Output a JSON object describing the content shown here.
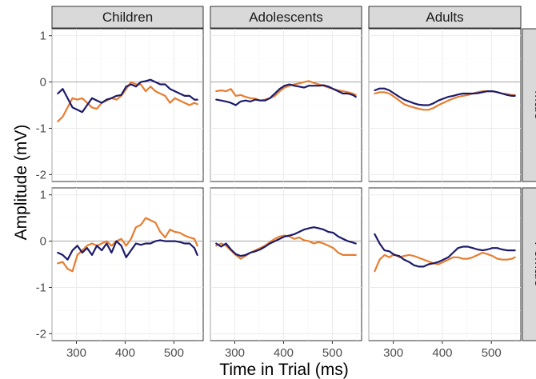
{
  "chart_data": {
    "type": "line",
    "xlabel": "Time in Trial (ms)",
    "ylabel": "Amplitude (mV)",
    "xlim": [
      250,
      560
    ],
    "ylim": [
      -2.15,
      1.15
    ],
    "xticks": [
      300,
      400,
      500
    ],
    "xtick_labels": [
      "300",
      "400",
      "500"
    ],
    "yticks": [
      1,
      0,
      -1,
      -2
    ],
    "ytick_labels": [
      "1",
      "0",
      "-1",
      "-2"
    ],
    "facet_cols": [
      "Children",
      "Adolescents",
      "Adults"
    ],
    "facet_rows": [
      "Male",
      "Female"
    ],
    "grid": true,
    "zero_line": true,
    "series_colors": [
      "#e87d2f",
      "#1b1b6b"
    ],
    "panels": [
      {
        "row": "Male",
        "col": "Children",
        "series": [
          {
            "color": "#e87d2f",
            "x": [
              262,
              272,
              282,
              292,
              302,
              312,
              322,
              332,
              342,
              352,
              362,
              372,
              382,
              392,
              402,
              412,
              422,
              432,
              442,
              452,
              462,
              472,
              482,
              492,
              502,
              512,
              522,
              532,
              542,
              548
            ],
            "y": [
              -0.85,
              -0.75,
              -0.55,
              -0.35,
              -0.38,
              -0.35,
              -0.45,
              -0.55,
              -0.58,
              -0.45,
              -0.4,
              -0.35,
              -0.38,
              -0.3,
              -0.15,
              0.0,
              -0.05,
              -0.05,
              -0.2,
              -0.1,
              -0.2,
              -0.25,
              -0.3,
              -0.45,
              -0.35,
              -0.4,
              -0.45,
              -0.5,
              -0.45,
              -0.48
            ]
          },
          {
            "color": "#1b1b6b",
            "x": [
              262,
              272,
              282,
              292,
              302,
              312,
              322,
              332,
              342,
              352,
              362,
              372,
              382,
              392,
              402,
              412,
              422,
              432,
              442,
              452,
              462,
              472,
              482,
              492,
              502,
              512,
              522,
              532,
              542,
              548
            ],
            "y": [
              -0.25,
              -0.15,
              -0.35,
              -0.55,
              -0.6,
              -0.65,
              -0.5,
              -0.35,
              -0.4,
              -0.45,
              -0.38,
              -0.35,
              -0.3,
              -0.28,
              -0.1,
              -0.05,
              -0.1,
              0.0,
              0.02,
              0.05,
              0.0,
              -0.05,
              -0.05,
              -0.15,
              -0.2,
              -0.25,
              -0.3,
              -0.3,
              -0.38,
              -0.38
            ]
          }
        ]
      },
      {
        "row": "Male",
        "col": "Adolescents",
        "series": [
          {
            "color": "#e87d2f",
            "x": [
              262,
              272,
              282,
              292,
              302,
              312,
              322,
              332,
              342,
              352,
              362,
              372,
              382,
              392,
              402,
              412,
              422,
              432,
              442,
              452,
              462,
              472,
              482,
              492,
              502,
              512,
              522,
              532,
              542,
              548
            ],
            "y": [
              -0.2,
              -0.18,
              -0.2,
              -0.15,
              -0.3,
              -0.28,
              -0.32,
              -0.35,
              -0.36,
              -0.4,
              -0.38,
              -0.35,
              -0.3,
              -0.2,
              -0.12,
              -0.08,
              -0.05,
              -0.03,
              0.0,
              0.02,
              -0.02,
              -0.05,
              -0.08,
              -0.12,
              -0.15,
              -0.18,
              -0.2,
              -0.22,
              -0.25,
              -0.28
            ]
          },
          {
            "color": "#1b1b6b",
            "x": [
              262,
              272,
              282,
              292,
              302,
              312,
              322,
              332,
              342,
              352,
              362,
              372,
              382,
              392,
              402,
              412,
              422,
              432,
              442,
              452,
              462,
              472,
              482,
              492,
              502,
              512,
              522,
              532,
              542,
              548
            ],
            "y": [
              -0.38,
              -0.4,
              -0.42,
              -0.45,
              -0.5,
              -0.42,
              -0.4,
              -0.42,
              -0.38,
              -0.4,
              -0.4,
              -0.35,
              -0.25,
              -0.15,
              -0.08,
              -0.05,
              -0.08,
              -0.1,
              -0.12,
              -0.08,
              -0.08,
              -0.08,
              -0.07,
              -0.1,
              -0.15,
              -0.2,
              -0.25,
              -0.25,
              -0.28,
              -0.32
            ]
          }
        ]
      },
      {
        "row": "Male",
        "col": "Adults",
        "series": [
          {
            "color": "#e87d2f",
            "x": [
              262,
              272,
              282,
              292,
              302,
              312,
              322,
              332,
              342,
              352,
              362,
              372,
              382,
              392,
              402,
              412,
              422,
              432,
              442,
              452,
              462,
              472,
              482,
              492,
              502,
              512,
              522,
              532,
              542,
              548
            ],
            "y": [
              -0.25,
              -0.22,
              -0.22,
              -0.25,
              -0.32,
              -0.4,
              -0.48,
              -0.52,
              -0.55,
              -0.58,
              -0.6,
              -0.6,
              -0.56,
              -0.5,
              -0.45,
              -0.4,
              -0.36,
              -0.32,
              -0.3,
              -0.28,
              -0.25,
              -0.22,
              -0.2,
              -0.2,
              -0.2,
              -0.22,
              -0.25,
              -0.26,
              -0.28,
              -0.28
            ]
          },
          {
            "color": "#1b1b6b",
            "x": [
              262,
              272,
              282,
              292,
              302,
              312,
              322,
              332,
              342,
              352,
              362,
              372,
              382,
              392,
              402,
              412,
              422,
              432,
              442,
              452,
              462,
              472,
              482,
              492,
              502,
              512,
              522,
              532,
              542,
              548
            ],
            "y": [
              -0.18,
              -0.14,
              -0.14,
              -0.18,
              -0.25,
              -0.32,
              -0.38,
              -0.42,
              -0.46,
              -0.49,
              -0.5,
              -0.5,
              -0.46,
              -0.4,
              -0.36,
              -0.32,
              -0.3,
              -0.27,
              -0.25,
              -0.25,
              -0.25,
              -0.24,
              -0.22,
              -0.2,
              -0.2,
              -0.22,
              -0.25,
              -0.28,
              -0.3,
              -0.3
            ]
          }
        ]
      },
      {
        "row": "Female",
        "col": "Children",
        "series": [
          {
            "color": "#e87d2f",
            "x": [
              262,
              272,
              282,
              292,
              302,
              312,
              322,
              332,
              342,
              352,
              362,
              372,
              382,
              392,
              402,
              412,
              422,
              432,
              442,
              452,
              462,
              472,
              482,
              492,
              502,
              512,
              522,
              532,
              542,
              548
            ],
            "y": [
              -0.48,
              -0.45,
              -0.6,
              -0.65,
              -0.3,
              -0.2,
              -0.1,
              -0.05,
              -0.1,
              -0.05,
              0.0,
              -0.1,
              0.0,
              0.05,
              -0.1,
              0.05,
              0.3,
              0.35,
              0.5,
              0.45,
              0.4,
              0.2,
              0.08,
              0.25,
              0.2,
              0.18,
              0.12,
              0.08,
              0.05,
              -0.1
            ]
          },
          {
            "color": "#1b1b6b",
            "x": [
              262,
              272,
              282,
              292,
              302,
              312,
              322,
              332,
              342,
              352,
              362,
              372,
              382,
              392,
              402,
              412,
              422,
              432,
              442,
              452,
              462,
              472,
              482,
              492,
              502,
              512,
              522,
              532,
              542,
              548
            ],
            "y": [
              -0.25,
              -0.3,
              -0.4,
              -0.2,
              -0.1,
              -0.25,
              -0.15,
              -0.3,
              -0.1,
              -0.2,
              -0.05,
              -0.25,
              0.0,
              -0.1,
              -0.35,
              -0.2,
              -0.05,
              -0.08,
              -0.05,
              -0.05,
              0.0,
              0.02,
              0.0,
              0.0,
              0.0,
              -0.02,
              -0.05,
              -0.05,
              -0.15,
              -0.3
            ]
          }
        ]
      },
      {
        "row": "Female",
        "col": "Adolescents",
        "series": [
          {
            "color": "#e87d2f",
            "x": [
              262,
              272,
              282,
              292,
              302,
              312,
              322,
              332,
              342,
              352,
              362,
              372,
              382,
              392,
              402,
              412,
              422,
              432,
              442,
              452,
              462,
              472,
              482,
              492,
              502,
              512,
              522,
              532,
              542,
              548
            ],
            "y": [
              -0.1,
              -0.05,
              -0.1,
              -0.2,
              -0.3,
              -0.38,
              -0.32,
              -0.25,
              -0.2,
              -0.15,
              -0.1,
              -0.02,
              0.05,
              0.1,
              0.12,
              0.1,
              0.05,
              0.08,
              0.02,
              0.0,
              -0.05,
              -0.02,
              -0.05,
              -0.1,
              -0.15,
              -0.25,
              -0.3,
              -0.3,
              -0.3,
              -0.3
            ]
          },
          {
            "color": "#1b1b6b",
            "x": [
              262,
              272,
              282,
              292,
              302,
              312,
              322,
              332,
              342,
              352,
              362,
              372,
              382,
              392,
              402,
              412,
              422,
              432,
              442,
              452,
              462,
              472,
              482,
              492,
              502,
              512,
              522,
              532,
              542,
              548
            ],
            "y": [
              -0.05,
              -0.12,
              -0.05,
              -0.18,
              -0.28,
              -0.32,
              -0.3,
              -0.25,
              -0.22,
              -0.18,
              -0.12,
              -0.05,
              0.0,
              0.05,
              0.1,
              0.12,
              0.15,
              0.2,
              0.25,
              0.28,
              0.3,
              0.28,
              0.25,
              0.2,
              0.18,
              0.1,
              0.05,
              0.0,
              -0.03,
              -0.05
            ]
          }
        ]
      },
      {
        "row": "Female",
        "col": "Adults",
        "series": [
          {
            "color": "#e87d2f",
            "x": [
              262,
              272,
              282,
              292,
              302,
              312,
              322,
              332,
              342,
              352,
              362,
              372,
              382,
              392,
              402,
              412,
              422,
              432,
              442,
              452,
              462,
              472,
              482,
              492,
              502,
              512,
              522,
              532,
              542,
              548
            ],
            "y": [
              -0.65,
              -0.4,
              -0.3,
              -0.35,
              -0.28,
              -0.35,
              -0.32,
              -0.3,
              -0.32,
              -0.36,
              -0.4,
              -0.44,
              -0.48,
              -0.5,
              -0.45,
              -0.4,
              -0.35,
              -0.35,
              -0.38,
              -0.38,
              -0.35,
              -0.3,
              -0.25,
              -0.28,
              -0.32,
              -0.38,
              -0.4,
              -0.4,
              -0.38,
              -0.35
            ]
          },
          {
            "color": "#1b1b6b",
            "x": [
              262,
              272,
              282,
              292,
              302,
              312,
              322,
              332,
              342,
              352,
              362,
              372,
              382,
              392,
              402,
              412,
              422,
              432,
              442,
              452,
              462,
              472,
              482,
              492,
              502,
              512,
              522,
              532,
              542,
              548
            ],
            "y": [
              0.15,
              -0.05,
              -0.2,
              -0.22,
              -0.3,
              -0.32,
              -0.4,
              -0.45,
              -0.52,
              -0.55,
              -0.55,
              -0.5,
              -0.48,
              -0.45,
              -0.4,
              -0.35,
              -0.25,
              -0.15,
              -0.12,
              -0.12,
              -0.15,
              -0.18,
              -0.2,
              -0.18,
              -0.15,
              -0.15,
              -0.18,
              -0.2,
              -0.2,
              -0.2
            ]
          }
        ]
      }
    ]
  }
}
